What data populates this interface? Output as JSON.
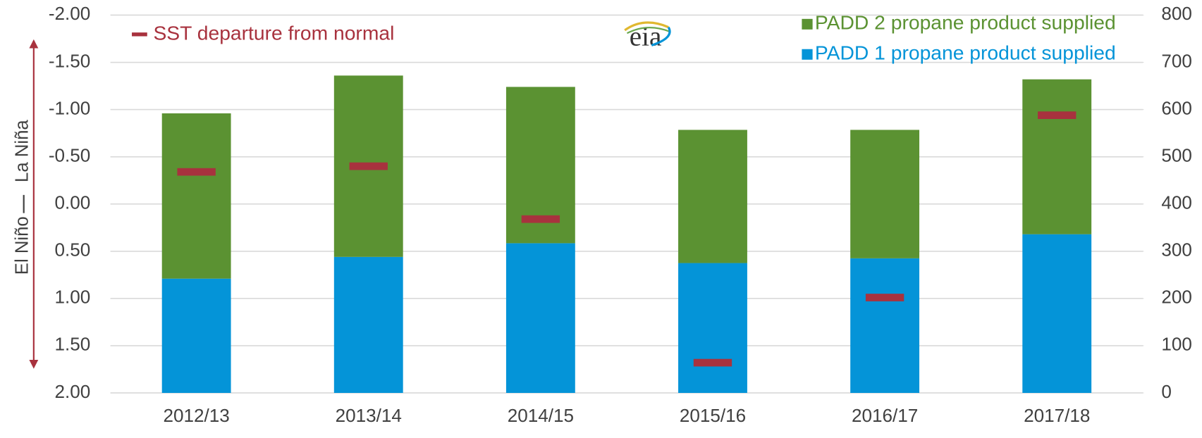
{
  "chart_data": {
    "type": "bar",
    "categories": [
      "2012/13",
      "2013/14",
      "2014/15",
      "2015/16",
      "2016/17",
      "2017/18"
    ],
    "series": [
      {
        "name": "PADD 1 propane product supplied",
        "color": "#0494d8",
        "axis": "y2",
        "stacked": true,
        "values": [
          242,
          288,
          317,
          275,
          285,
          336
        ]
      },
      {
        "name": "PADD 2 propane product supplied",
        "color": "#5b9232",
        "axis": "y2",
        "stacked": true,
        "values": [
          350,
          384,
          331,
          282,
          272,
          328
        ]
      },
      {
        "name": "SST departure from normal",
        "color": "#a8323e",
        "axis": "y",
        "marker": "dash",
        "values": [
          -0.34,
          -0.4,
          0.16,
          1.68,
          0.99,
          -0.94
        ]
      }
    ],
    "ylim": [
      -2,
      2
    ],
    "y_inverted": true,
    "yticks": [
      {
        "value": -2,
        "label": "-2.00"
      },
      {
        "value": -1.5,
        "label": "-1.50"
      },
      {
        "value": -1,
        "label": "-1.00"
      },
      {
        "value": -0.5,
        "label": "-0.50"
      },
      {
        "value": 0,
        "label": "0.00"
      },
      {
        "value": 0.5,
        "label": "0.50"
      },
      {
        "value": 1,
        "label": "1.00"
      },
      {
        "value": 1.5,
        "label": "1.50"
      },
      {
        "value": 2,
        "label": "2.00"
      }
    ],
    "y2lim": [
      0,
      800
    ],
    "y2ticks": [
      0,
      100,
      200,
      300,
      400,
      500,
      600,
      700,
      800
    ],
    "y_annotations": [
      "La Niña",
      "El Niño"
    ],
    "logo": "eia",
    "grid": true
  }
}
